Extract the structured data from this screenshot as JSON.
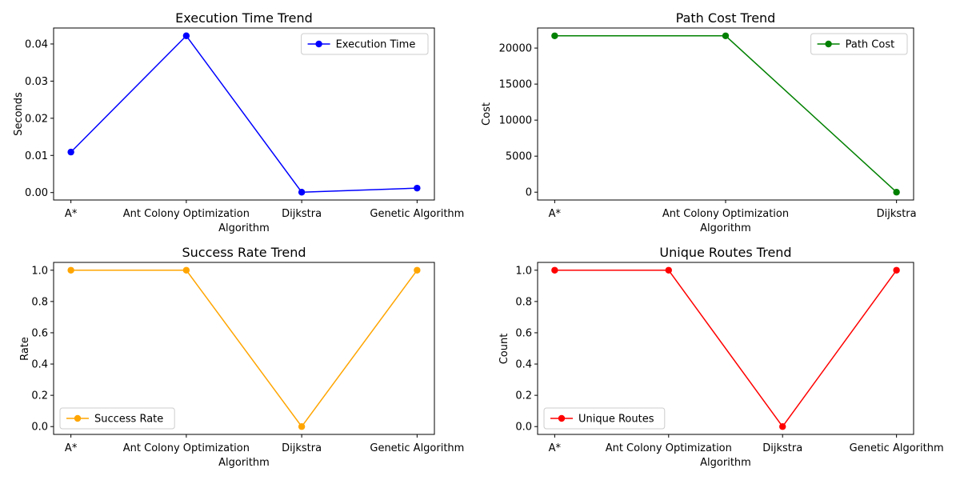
{
  "chart_data": [
    {
      "type": "line",
      "title": "Execution Time Trend",
      "xlabel": "Algorithm",
      "ylabel": "Seconds",
      "categories": [
        "A*",
        "Ant Colony Optimization",
        "Dijkstra",
        "Genetic Algorithm"
      ],
      "series": [
        {
          "name": "Execution Time",
          "values": [
            0.0109,
            0.0422,
            0.0001,
            0.0012
          ],
          "color": "#0000ff"
        }
      ],
      "yticks": [
        0.0,
        0.01,
        0.02,
        0.03,
        0.04
      ],
      "ytick_labels": [
        "0.00",
        "0.01",
        "0.02",
        "0.03",
        "0.04"
      ],
      "ylim": [
        -0.002,
        0.0443
      ],
      "legend": "upper right",
      "grid": false
    },
    {
      "type": "line",
      "title": "Path Cost Trend",
      "xlabel": "Algorithm",
      "ylabel": "Cost",
      "categories": [
        "A*",
        "Ant Colony Optimization",
        "Dijkstra"
      ],
      "series": [
        {
          "name": "Path Cost",
          "values": [
            21700,
            21700,
            0
          ],
          "color": "#008000"
        }
      ],
      "yticks": [
        0,
        5000,
        10000,
        15000,
        20000
      ],
      "ytick_labels": [
        "0",
        "5000",
        "10000",
        "15000",
        "20000"
      ],
      "ylim": [
        -1085,
        22785
      ],
      "legend": "upper right",
      "grid": false
    },
    {
      "type": "line",
      "title": "Success Rate Trend",
      "xlabel": "Algorithm",
      "ylabel": "Rate",
      "categories": [
        "A*",
        "Ant Colony Optimization",
        "Dijkstra",
        "Genetic Algorithm"
      ],
      "series": [
        {
          "name": "Success Rate",
          "values": [
            1.0,
            1.0,
            0.0,
            1.0
          ],
          "color": "#ffa500"
        }
      ],
      "yticks": [
        0.0,
        0.2,
        0.4,
        0.6,
        0.8,
        1.0
      ],
      "ytick_labels": [
        "0.0",
        "0.2",
        "0.4",
        "0.6",
        "0.8",
        "1.0"
      ],
      "ylim": [
        -0.05,
        1.05
      ],
      "legend": "lower left",
      "grid": false
    },
    {
      "type": "line",
      "title": "Unique Routes Trend",
      "xlabel": "Algorithm",
      "ylabel": "Count",
      "categories": [
        "A*",
        "Ant Colony Optimization",
        "Dijkstra",
        "Genetic Algorithm"
      ],
      "series": [
        {
          "name": "Unique Routes",
          "values": [
            1.0,
            1.0,
            0.0,
            1.0
          ],
          "color": "#ff0000"
        }
      ],
      "yticks": [
        0.0,
        0.2,
        0.4,
        0.6,
        0.8,
        1.0
      ],
      "ytick_labels": [
        "0.0",
        "0.2",
        "0.4",
        "0.6",
        "0.8",
        "1.0"
      ],
      "ylim": [
        -0.05,
        1.05
      ],
      "legend": "lower left",
      "grid": false
    }
  ]
}
